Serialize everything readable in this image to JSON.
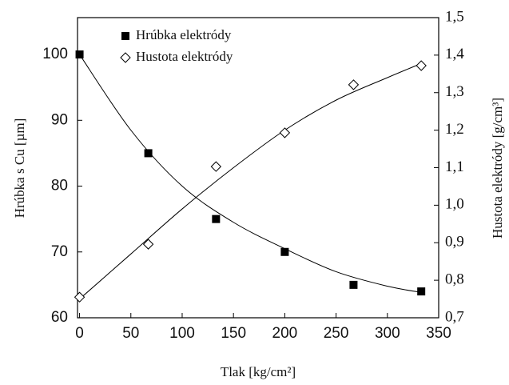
{
  "chart_data": {
    "type": "scatter",
    "xlabel": "Tlak [kg/cm²]",
    "ylabel": "Hrúbka s Cu [µm]",
    "y2label": "Hustota elektródy [g/cm³]",
    "xlim": [
      -2,
      350
    ],
    "xticks": [
      0,
      50,
      100,
      150,
      200,
      250,
      300,
      350
    ],
    "ylim": [
      60,
      105.6
    ],
    "yticks": [
      60,
      70,
      80,
      90,
      100
    ],
    "y2lim": [
      0.7,
      1.5
    ],
    "y2ticks": [
      {
        "value": 0.7,
        "label": "0,7"
      },
      {
        "value": 0.8,
        "label": "0,8"
      },
      {
        "value": 0.9,
        "label": "0,9"
      },
      {
        "value": 1.0,
        "label": "1,0"
      },
      {
        "value": 1.1,
        "label": "1,1"
      },
      {
        "value": 1.2,
        "label": "1,2"
      },
      {
        "value": 1.3,
        "label": "1,3"
      },
      {
        "value": 1.4,
        "label": "1,4"
      },
      {
        "value": 1.5,
        "label": "1,5"
      }
    ],
    "legend": "upper left",
    "series": [
      {
        "name": "Hrúbka elektródy",
        "color": "#000000",
        "marker": "square",
        "x": [
          0,
          67,
          133,
          200,
          267,
          333
        ],
        "values": [
          100,
          85,
          75,
          70,
          65,
          64
        ],
        "fit_x": [
          0,
          50,
          100,
          150,
          200,
          250,
          300,
          335
        ],
        "fit": [
          100,
          88.5,
          80,
          74.5,
          70.5,
          67,
          64.8,
          63.8
        ]
      },
      {
        "name": "Hustota elektródy",
        "color": "#000000",
        "marker": "diamond",
        "axis": "y2",
        "x": [
          0,
          67,
          133,
          200,
          267,
          333
        ],
        "values": [
          0.755,
          0.896,
          1.103,
          1.193,
          1.321,
          1.372
        ],
        "fit_x": [
          0,
          50,
          100,
          150,
          200,
          250,
          300,
          335
        ],
        "fit": [
          0.75,
          0.87,
          0.99,
          1.1,
          1.2,
          1.28,
          1.34,
          1.38
        ]
      }
    ]
  }
}
